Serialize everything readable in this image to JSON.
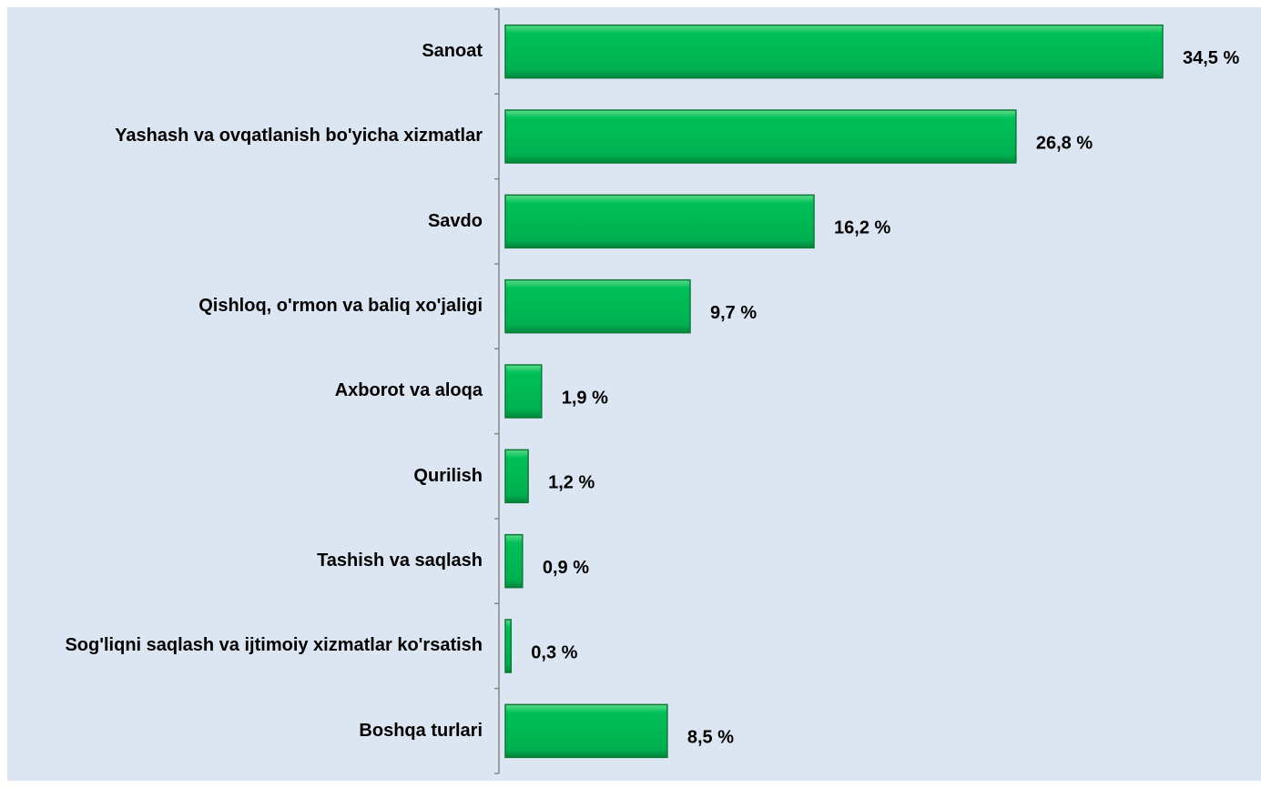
{
  "chart_data": {
    "type": "bar",
    "orientation": "horizontal",
    "categories": [
      "Sanoat",
      "Yashash va ovqatlanish bo'yicha xizmatlar",
      "Savdo",
      "Qishloq, o'rmon va baliq xo'jaligi",
      "Axborot va aloqa",
      "Qurilish",
      "Tashish va saqlash",
      "Sog'liqni saqlash va ijtimoiy xizmatlar ko'rsatish",
      "Boshqa turlari"
    ],
    "values": [
      34.5,
      26.8,
      16.2,
      9.7,
      1.9,
      1.2,
      0.9,
      0.3,
      8.5
    ],
    "value_labels": [
      "34,5 %",
      "26,8 %",
      "16,2 %",
      "9,7 %",
      "1,9 %",
      "1,2 %",
      "0,9 %",
      "0,3 %",
      "8,5 %"
    ],
    "color": "#00b050"
  }
}
